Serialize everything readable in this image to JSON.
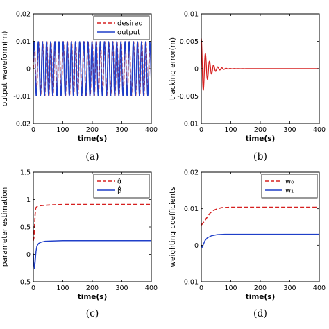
{
  "chart_data": [
    {
      "id": "a",
      "type": "line",
      "caption": "(a)",
      "xlabel": "time(s)",
      "ylabel": "output waveform(m)",
      "xlim": [
        0,
        400
      ],
      "ylim": [
        -0.02,
        0.02
      ],
      "xticks": [
        "0",
        "100",
        "200",
        "300",
        "400"
      ],
      "yticks": [
        "-0.02",
        "-0.01",
        "0",
        "0.01",
        "0.02"
      ],
      "legend": {
        "position": "top-right",
        "entries": [
          "desired",
          "output"
        ]
      },
      "series": [
        {
          "name": "desired",
          "style": "dashed",
          "color": "#d62020",
          "model": {
            "amplitude": 0.01,
            "period": 14,
            "start_x": 0,
            "end_x": 400
          }
        },
        {
          "name": "output",
          "style": "solid",
          "color": "#1f3fc9",
          "model": {
            "amplitude": 0.01,
            "period": 14,
            "start_x": 0,
            "end_x": 400
          }
        }
      ]
    },
    {
      "id": "b",
      "type": "line",
      "caption": "(b)",
      "xlabel": "time(s)",
      "ylabel": "tracking error(m)",
      "xlim": [
        0,
        400
      ],
      "ylim": [
        -0.01,
        0.01
      ],
      "xticks": [
        "0",
        "100",
        "200",
        "300",
        "400"
      ],
      "yticks": [
        "-0.01",
        "-0.005",
        "0",
        "0.005",
        "0.01"
      ],
      "series": [
        {
          "name": "",
          "style": "solid",
          "color": "#d62020",
          "model": {
            "amplitude": 0.0055,
            "period": 14,
            "decay": 20,
            "start_x": 0,
            "end_x": 400,
            "offset": 0
          }
        }
      ]
    },
    {
      "id": "c",
      "type": "line",
      "caption": "(c)",
      "xlabel": "time(s)",
      "ylabel": "parameter estimation",
      "xlim": [
        0,
        400
      ],
      "ylim": [
        -0.5,
        1.5
      ],
      "xticks": [
        "0",
        "100",
        "200",
        "300",
        "400"
      ],
      "yticks": [
        "-0.5",
        "0",
        "0.5",
        "1",
        "1.5"
      ],
      "legend": {
        "position": "top-right",
        "entries": [
          "α̂",
          "β̂"
        ]
      },
      "series": [
        {
          "name": "α̂",
          "style": "dashed",
          "color": "#d62020",
          "points": [
            [
              0,
              0.25
            ],
            [
              2,
              0.3
            ],
            [
              4,
              0.5
            ],
            [
              6,
              0.72
            ],
            [
              8,
              0.84
            ],
            [
              10,
              0.86
            ],
            [
              15,
              0.88
            ],
            [
              25,
              0.89
            ],
            [
              50,
              0.9
            ],
            [
              100,
              0.91
            ],
            [
              400,
              0.91
            ]
          ]
        },
        {
          "name": "β̂",
          "style": "solid",
          "color": "#1f3fc9",
          "points": [
            [
              0,
              0.02
            ],
            [
              2,
              -0.15
            ],
            [
              4,
              -0.27
            ],
            [
              6,
              -0.15
            ],
            [
              9,
              0.05
            ],
            [
              12,
              0.15
            ],
            [
              18,
              0.2
            ],
            [
              25,
              0.22
            ],
            [
              40,
              0.24
            ],
            [
              100,
              0.25
            ],
            [
              400,
              0.25
            ]
          ]
        }
      ]
    },
    {
      "id": "d",
      "type": "line",
      "caption": "(d)",
      "xlabel": "time(s)",
      "ylabel": "weighting coefficients",
      "xlim": [
        0,
        400
      ],
      "ylim": [
        -0.01,
        0.02
      ],
      "xticks": [
        "0",
        "100",
        "200",
        "300",
        "400"
      ],
      "yticks": [
        "-0.01",
        "0",
        "0.01",
        "0.02"
      ],
      "legend": {
        "position": "top-right",
        "entries": [
          "w₀",
          "w₁"
        ]
      },
      "series": [
        {
          "name": "w₀",
          "style": "dashed",
          "color": "#d62020",
          "points": [
            [
              0,
              0.0055
            ],
            [
              10,
              0.0065
            ],
            [
              20,
              0.0077
            ],
            [
              30,
              0.0088
            ],
            [
              40,
              0.0095
            ],
            [
              55,
              0.01
            ],
            [
              70,
              0.0103
            ],
            [
              100,
              0.0104
            ],
            [
              400,
              0.0104
            ]
          ]
        },
        {
          "name": "w₁",
          "style": "solid",
          "color": "#1f3fc9",
          "points": [
            [
              0,
              0.0
            ],
            [
              3,
              -0.0005
            ],
            [
              6,
              0.0
            ],
            [
              12,
              0.0012
            ],
            [
              20,
              0.002
            ],
            [
              35,
              0.0026
            ],
            [
              55,
              0.0029
            ],
            [
              80,
              0.003
            ],
            [
              400,
              0.003
            ]
          ]
        }
      ]
    }
  ]
}
